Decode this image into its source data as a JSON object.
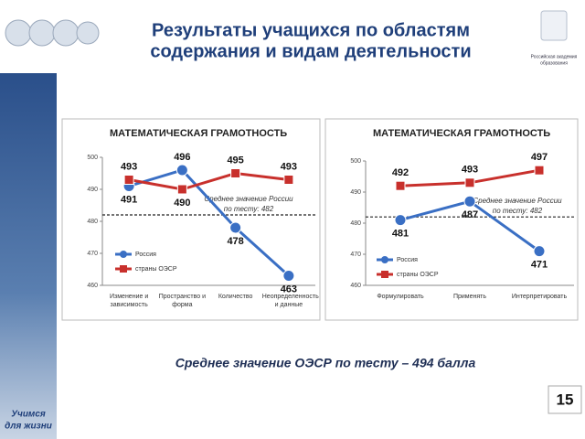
{
  "slide": {
    "title": [
      "Результаты учащихся по областям",
      "содержания и видам деятельности"
    ],
    "logo_text": [
      "Российская академия",
      "образования"
    ],
    "footer": "Среднее значение ОЭСР по тесту – 494 балла",
    "motto": [
      "Учимся",
      "для жизни"
    ],
    "page_number": "15"
  },
  "chart_data": [
    {
      "type": "line",
      "title": "МАТЕМАТИЧЕСКАЯ ГРАМОТНОСТЬ",
      "categories": [
        "Изменение и зависимость",
        "Пространство и форма",
        "Количество",
        "Неопределенность и данные"
      ],
      "series": [
        {
          "name": "Россия",
          "color": "#3a6fc4",
          "marker": "circle",
          "values": [
            491,
            496,
            478,
            463
          ]
        },
        {
          "name": "страны ОЭСР",
          "color": "#c8302c",
          "marker": "square",
          "values": [
            493,
            490,
            495,
            493
          ]
        }
      ],
      "ylim": [
        460,
        500
      ],
      "yticks": [
        460,
        470,
        480,
        490,
        500
      ],
      "reference_line": 482,
      "annotation": [
        "Среднее значение России",
        "по тесту: 482"
      ]
    },
    {
      "type": "line",
      "title": "МАТЕМАТИЧЕСКАЯ ГРАМОТНОСТЬ",
      "categories": [
        "Формулировать",
        "Применять",
        "Интерпретировать"
      ],
      "series": [
        {
          "name": "Россия",
          "color": "#3a6fc4",
          "marker": "circle",
          "values": [
            481,
            487,
            471
          ]
        },
        {
          "name": "страны ОЭСР",
          "color": "#c8302c",
          "marker": "square",
          "values": [
            492,
            493,
            497
          ]
        }
      ],
      "ylim": [
        460,
        500
      ],
      "yticks": [
        460,
        470,
        480,
        490,
        500
      ],
      "reference_line": 482,
      "annotation": [
        "Среднее значение России",
        "по тесту: 482"
      ]
    }
  ]
}
